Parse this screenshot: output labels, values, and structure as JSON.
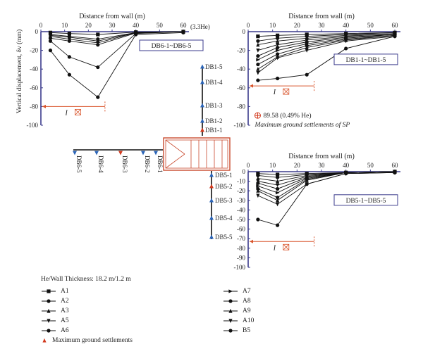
{
  "chart_data": [
    {
      "type": "line",
      "id": "p1",
      "title": "Distance from wall (m)",
      "ylabel": "Vertical displacement, δv (mm)",
      "xlim": [
        0,
        60
      ],
      "ylim": [
        -100,
        0
      ],
      "xticks": [
        0,
        10,
        20,
        30,
        40,
        50,
        60
      ],
      "yticks": [
        0,
        -20,
        -40,
        -60,
        -80,
        -100
      ],
      "box_label": "DB6-1~DB6-5",
      "he_note": "(3.3He)",
      "zone_label": "I",
      "series": [
        {
          "name": "A1",
          "marker": "square",
          "x": [
            4,
            12,
            24,
            40,
            60
          ],
          "y": [
            -1,
            -2,
            -3,
            -0.5,
            0
          ]
        },
        {
          "name": "A2",
          "marker": "dot",
          "x": [
            4,
            12,
            24,
            40,
            60
          ],
          "y": [
            -3,
            -5,
            -8,
            -1,
            0
          ]
        },
        {
          "name": "A3",
          "marker": "triangle",
          "x": [
            4,
            12,
            24,
            40,
            60
          ],
          "y": [
            -4,
            -6,
            -10,
            -1,
            0
          ]
        },
        {
          "name": "A5",
          "marker": "tri-down",
          "x": [
            4,
            12,
            24,
            40,
            60
          ],
          "y": [
            -5,
            -8,
            -12,
            -1,
            0
          ]
        },
        {
          "name": "A6",
          "marker": "dot",
          "x": [
            4,
            12,
            24,
            40,
            60
          ],
          "y": [
            -7,
            -10,
            -14,
            -1.5,
            0
          ]
        },
        {
          "name": "A8",
          "marker": "dot",
          "x": [
            4,
            12,
            24,
            40,
            60
          ],
          "y": [
            -10,
            -27,
            -38,
            -2,
            0
          ]
        },
        {
          "name": "B5",
          "marker": "dot",
          "x": [
            4,
            12,
            24,
            40,
            60
          ],
          "y": [
            -20,
            -46,
            -70,
            -3,
            -1
          ]
        }
      ]
    },
    {
      "type": "line",
      "id": "p2",
      "title": "Distance from wall (m)",
      "xlim": [
        0,
        60
      ],
      "ylim": [
        -100,
        0
      ],
      "xticks": [
        0,
        10,
        20,
        30,
        40,
        50,
        60
      ],
      "yticks": [
        0,
        -20,
        -40,
        -60,
        -80,
        -100
      ],
      "box_label": "DB1-1~DB1-5",
      "zone_label": "I",
      "max_settlement_label": "89.58 (0.49% He)",
      "max_settlement_caption": "Maximum ground settlements of SP",
      "max_settlement_point": {
        "x": 1,
        "y": -89.58
      },
      "series": [
        {
          "name": "A1",
          "marker": "square",
          "x": [
            4,
            12,
            24,
            40,
            60
          ],
          "y": [
            -5,
            -4,
            -3,
            -2,
            -1
          ]
        },
        {
          "name": "A2",
          "marker": "dot",
          "x": [
            4,
            12,
            24,
            40,
            60
          ],
          "y": [
            -10,
            -7,
            -5,
            -3,
            -1
          ]
        },
        {
          "name": "A3",
          "marker": "triangle",
          "x": [
            4,
            12,
            24,
            40,
            60
          ],
          "y": [
            -14,
            -10,
            -7,
            -4,
            -2
          ]
        },
        {
          "name": "A5",
          "marker": "tri-down",
          "x": [
            4,
            12,
            24,
            40,
            60
          ],
          "y": [
            -20,
            -14,
            -9,
            -5,
            -2
          ]
        },
        {
          "name": "A6",
          "marker": "dot",
          "x": [
            4,
            12,
            24,
            40,
            60
          ],
          "y": [
            -26,
            -17,
            -11,
            -6,
            -3
          ]
        },
        {
          "name": "A7",
          "marker": "tri-right",
          "x": [
            4,
            12,
            24,
            40,
            60
          ],
          "y": [
            -30,
            -20,
            -13,
            -7,
            -3
          ]
        },
        {
          "name": "A8",
          "marker": "dot",
          "x": [
            4,
            12,
            24,
            40,
            60
          ],
          "y": [
            -35,
            -24,
            -15,
            -8,
            -4
          ]
        },
        {
          "name": "A9",
          "marker": "triangle",
          "x": [
            4,
            12,
            24,
            40,
            60
          ],
          "y": [
            -40,
            -27,
            -17,
            -9,
            -4
          ]
        },
        {
          "name": "A10",
          "marker": "tri-down",
          "x": [
            4,
            12,
            24,
            40,
            60
          ],
          "y": [
            -44,
            -28,
            -20,
            -10,
            -5
          ]
        },
        {
          "name": "B5",
          "marker": "dot",
          "x": [
            4,
            12,
            24,
            40,
            60
          ],
          "y": [
            -52,
            -50,
            -46,
            -18,
            -5
          ]
        }
      ]
    },
    {
      "type": "line",
      "id": "p3",
      "title": "Distance from wall (m)",
      "xlim": [
        0,
        60
      ],
      "ylim": [
        -100,
        0
      ],
      "xticks": [
        0,
        10,
        20,
        30,
        40,
        50,
        60
      ],
      "yticks": [
        0,
        -10,
        -20,
        -30,
        -40,
        -50,
        -60,
        -70,
        -80,
        -90,
        -100
      ],
      "box_label": "DB5-1~DB5-5",
      "zone_label": "I",
      "series": [
        {
          "name": "A1",
          "marker": "square",
          "x": [
            4,
            12,
            24,
            40,
            60
          ],
          "y": [
            -2,
            -3,
            -2,
            -1,
            0
          ]
        },
        {
          "name": "A2",
          "marker": "dot",
          "x": [
            4,
            12,
            24,
            40,
            60
          ],
          "y": [
            -4,
            -6,
            -3,
            -1,
            0
          ]
        },
        {
          "name": "A3",
          "marker": "triangle",
          "x": [
            4,
            12,
            24,
            40,
            60
          ],
          "y": [
            -7,
            -10,
            -4,
            -1,
            0
          ]
        },
        {
          "name": "A5",
          "marker": "tri-down",
          "x": [
            4,
            12,
            24,
            40,
            60
          ],
          "y": [
            -10,
            -14,
            -5,
            -1,
            0
          ]
        },
        {
          "name": "A6",
          "marker": "dot",
          "x": [
            4,
            12,
            24,
            40,
            60
          ],
          "y": [
            -12,
            -18,
            -6,
            -1,
            0
          ]
        },
        {
          "name": "A7",
          "marker": "tri-right",
          "x": [
            4,
            12,
            24,
            40,
            60
          ],
          "y": [
            -15,
            -22,
            -7,
            -1,
            0
          ]
        },
        {
          "name": "A8",
          "marker": "dot",
          "x": [
            4,
            12,
            24,
            40,
            60
          ],
          "y": [
            -18,
            -27,
            -8,
            -1,
            0
          ]
        },
        {
          "name": "A9",
          "marker": "triangle",
          "x": [
            4,
            12,
            24,
            40,
            60
          ],
          "y": [
            -20,
            -30,
            -9,
            -1,
            0
          ]
        },
        {
          "name": "A10",
          "marker": "tri-down",
          "x": [
            4,
            12,
            24,
            40,
            60
          ],
          "y": [
            -25,
            -34,
            -13,
            -2,
            -1
          ]
        },
        {
          "name": "B5",
          "marker": "dot",
          "x": [
            4,
            12,
            24,
            40,
            60
          ],
          "y": [
            -50,
            -56,
            -13,
            -2,
            -1
          ]
        }
      ]
    }
  ],
  "site_plan": {
    "north_line": [
      "DB1-5",
      "DB1-4",
      "DB1-3",
      "DB1-2",
      "DB1-1"
    ],
    "west_line": [
      "DB6-5",
      "DB6-4",
      "DB6-3",
      "DB6-2",
      "DB6-1"
    ],
    "south_line": [
      "DB5-1",
      "DB5-2",
      "DB5-3",
      "DB5-4",
      "DB5-5"
    ],
    "max_points": [
      "DB1-1",
      "DB6-3",
      "DB5-2"
    ]
  },
  "legend": {
    "title": "He/Wall Thickness: 18.2 m/1.2 m",
    "left_items": [
      {
        "label": "A1",
        "marker": "square"
      },
      {
        "label": "A2",
        "marker": "dot"
      },
      {
        "label": "A3",
        "marker": "triangle"
      },
      {
        "label": "A5",
        "marker": "tri-down"
      },
      {
        "label": "A6",
        "marker": "dot"
      },
      {
        "label": "Maximum ground settlements",
        "marker": "red-triangle"
      }
    ],
    "right_items": [
      {
        "label": "A7",
        "marker": "tri-right"
      },
      {
        "label": "A8",
        "marker": "dot"
      },
      {
        "label": "A9",
        "marker": "triangle"
      },
      {
        "label": "A10",
        "marker": "tri-down"
      },
      {
        "label": "B5",
        "marker": "dot"
      }
    ]
  },
  "colors": {
    "axis": "#3b3b8c",
    "marker_blue": "#2a64b8",
    "marker_red": "#d23a1e",
    "zone": "#d9542b",
    "excavation": "#c94a2e"
  }
}
